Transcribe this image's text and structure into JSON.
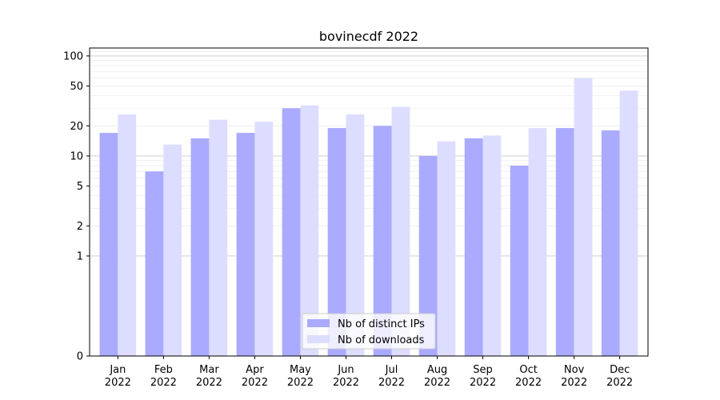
{
  "chart_data": {
    "type": "bar",
    "title": "bovinecdf 2022",
    "xlabel": "",
    "ylabel": "",
    "yscale": "symlog",
    "ylim": [
      0,
      120
    ],
    "yticks": [
      0,
      1,
      2,
      5,
      10,
      20,
      50,
      100
    ],
    "grid": "y major and minor",
    "legend_position": "lower center",
    "categories": [
      [
        "Jan",
        "2022"
      ],
      [
        "Feb",
        "2022"
      ],
      [
        "Mar",
        "2022"
      ],
      [
        "Apr",
        "2022"
      ],
      [
        "May",
        "2022"
      ],
      [
        "Jun",
        "2022"
      ],
      [
        "Jul",
        "2022"
      ],
      [
        "Aug",
        "2022"
      ],
      [
        "Sep",
        "2022"
      ],
      [
        "Oct",
        "2022"
      ],
      [
        "Nov",
        "2022"
      ],
      [
        "Dec",
        "2022"
      ]
    ],
    "series": [
      {
        "name": "Nb of distinct IPs",
        "color": "#aaaaff",
        "values": [
          17,
          7,
          15,
          17,
          30,
          19,
          20,
          10,
          15,
          8,
          19,
          18
        ]
      },
      {
        "name": "Nb of downloads",
        "color": "#ddddff",
        "values": [
          26,
          13,
          23,
          22,
          32,
          26,
          31,
          14,
          16,
          19,
          60,
          45
        ]
      }
    ]
  }
}
